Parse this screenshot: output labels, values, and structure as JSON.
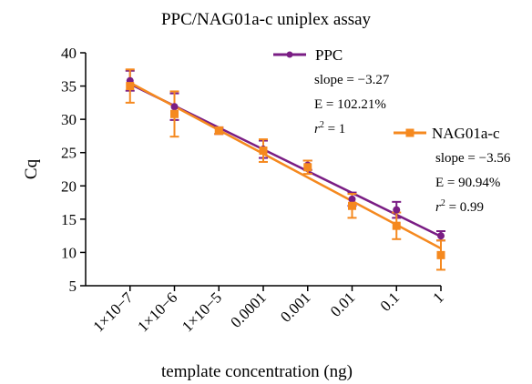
{
  "chart_data": {
    "type": "line",
    "title": "PPC/NAG01a-c uniplex assay",
    "xlabel": "template concentration (ng)",
    "ylabel": "Cq",
    "ylim": [
      5,
      40
    ],
    "yticks": [
      5,
      10,
      15,
      20,
      25,
      30,
      35,
      40
    ],
    "categories": [
      "1×10−7",
      "1×10−6",
      "1×10−5",
      "0.0001",
      "0.001",
      "0.01",
      "0.1",
      "1"
    ],
    "series": [
      {
        "name": "PPC",
        "color": "#7a1d84",
        "marker": "circle",
        "values": [
          35.8,
          31.9,
          28.3,
          25.5,
          23.1,
          18.0,
          16.4,
          12.5
        ],
        "errors": [
          1.5,
          2.0,
          0.5,
          1.3,
          0.7,
          1.0,
          1.2,
          0.7
        ],
        "fit": [
          35.3,
          12.4
        ],
        "stats": {
          "slope": "slope = −3.27",
          "efficiency": "E = 102.21%",
          "r2_prefix": "r",
          "r2_value": " = 1"
        }
      },
      {
        "name": "NAG01a-c",
        "color": "#f5891f",
        "marker": "square",
        "values": [
          35.0,
          30.8,
          28.3,
          25.3,
          22.8,
          17.0,
          14.0,
          9.6
        ],
        "errors": [
          2.5,
          3.4,
          0.5,
          1.7,
          1.0,
          1.8,
          2.0,
          2.2
        ],
        "fit": [
          35.5,
          10.6
        ],
        "stats": {
          "slope": "slope = −3.56",
          "efficiency": "E = 90.94%",
          "r2_prefix": "r",
          "r2_value": " = 0.99"
        }
      }
    ]
  }
}
